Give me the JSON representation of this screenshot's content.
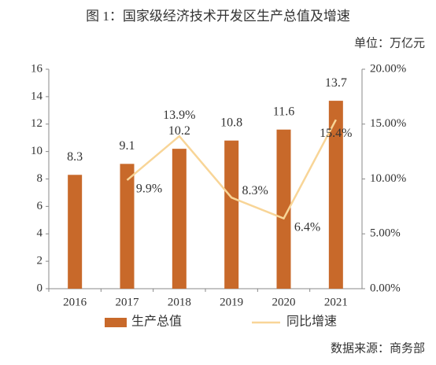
{
  "chart_data": {
    "type": "bar",
    "title": "图 1：国家级经济技术开发区生产总值及增速",
    "unit": "单位：万亿元",
    "source": "数据来源：商务部",
    "categories": [
      "2016",
      "2017",
      "2018",
      "2019",
      "2020",
      "2021"
    ],
    "series": [
      {
        "name": "生产总值",
        "color": "#c8692a",
        "type": "bar",
        "values": [
          8.3,
          9.1,
          10.2,
          10.8,
          11.6,
          13.7
        ]
      },
      {
        "name": "同比增速",
        "color": "#f8d597",
        "type": "line",
        "axis": "y2",
        "values": [
          null,
          9.9,
          13.9,
          8.3,
          6.4,
          15.4
        ],
        "value_labels": [
          null,
          "9.9%",
          "13.9%",
          "8.3%",
          "6.4%",
          "15.4%"
        ]
      }
    ],
    "ylim": [
      0,
      16
    ],
    "yticks": [
      0,
      2,
      4,
      6,
      8,
      10,
      12,
      14,
      16
    ],
    "y2lim": [
      0,
      20
    ],
    "y2ticks": [
      {
        "value": 0,
        "label": "0.00%"
      },
      {
        "value": 5,
        "label": "5.00%"
      },
      {
        "value": 10,
        "label": "10.00%"
      },
      {
        "value": 15,
        "label": "15.00%"
      },
      {
        "value": 20,
        "label": "20.00%"
      }
    ],
    "legend": "bottom"
  }
}
